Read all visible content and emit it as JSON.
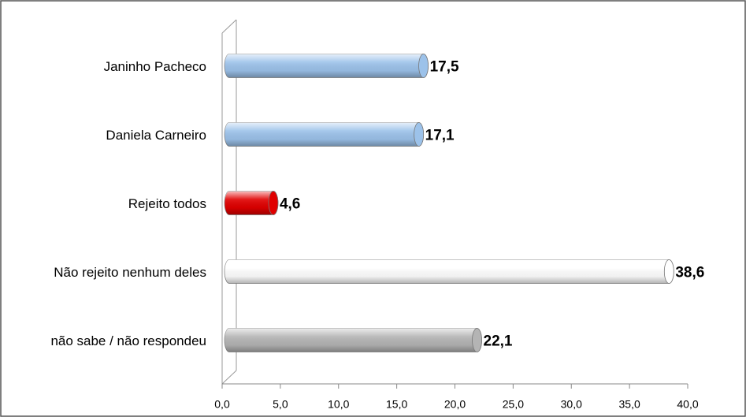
{
  "chart_data": {
    "type": "bar",
    "orientation": "horizontal",
    "categories": [
      "Janinho Pacheco",
      "Daniela Carneiro",
      "Rejeito todos",
      "Não rejeito nenhum deles",
      "não sabe  / não respondeu"
    ],
    "values": [
      17.5,
      17.1,
      4.6,
      38.6,
      22.1
    ],
    "value_labels": [
      "17,5",
      "17,1",
      "4,6",
      "38,6",
      "22,1"
    ],
    "colors": [
      "#9cc2ea",
      "#9cc2ea",
      "#e00000",
      "#ffffff",
      "#b4b4b4"
    ],
    "xlim": [
      0,
      40
    ],
    "xticks": [
      {
        "value": 0,
        "label": "0,0"
      },
      {
        "value": 5,
        "label": "5,0"
      },
      {
        "value": 10,
        "label": "10,0"
      },
      {
        "value": 15,
        "label": "15,0"
      },
      {
        "value": 20,
        "label": "20,0"
      },
      {
        "value": 25,
        "label": "25,0"
      },
      {
        "value": 30,
        "label": "30,0"
      },
      {
        "value": 35,
        "label": "35,0"
      },
      {
        "value": 40,
        "label": "40,0"
      }
    ]
  }
}
